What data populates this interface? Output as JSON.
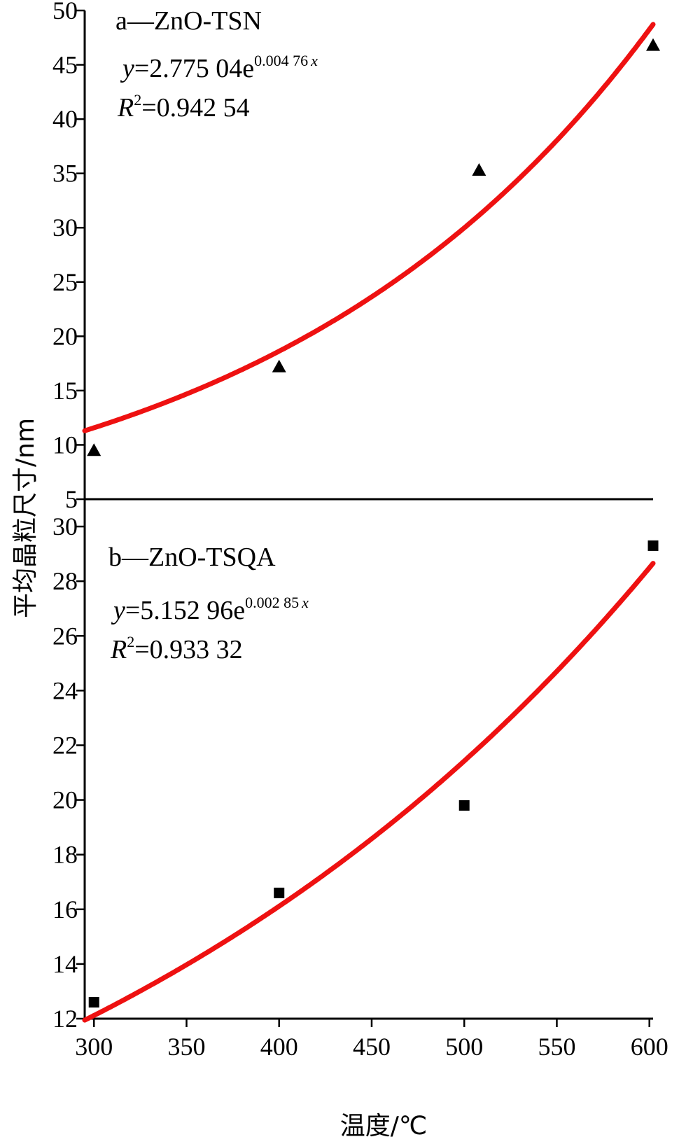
{
  "figure": {
    "ylabel": "平均晶粒尺寸/nm",
    "xlabel": "温度/℃"
  },
  "chart_data": [
    {
      "type": "scatter",
      "title": "a—ZnO-TSN",
      "x": [
        300,
        400,
        508,
        602
      ],
      "y": [
        9.5,
        17.2,
        35.3,
        46.8
      ],
      "marker": "triangle",
      "xlim": [
        295,
        602
      ],
      "ylim": [
        5,
        50
      ],
      "yticks": [
        5,
        10,
        15,
        20,
        25,
        30,
        35,
        40,
        45,
        50
      ],
      "fit": {
        "type": "exponential",
        "a": 2.77504,
        "b": 0.00476,
        "equation_y": "y",
        "equation_coef": "=2.775 04e",
        "equation_exp": "0.004 76",
        "equation_var": "x",
        "r2_label": "R",
        "r2_sup": "2",
        "r2_value": "=0.942 54"
      },
      "colors": {
        "fit": "#ee1111",
        "marker": "#000000"
      }
    },
    {
      "type": "scatter",
      "title": "b—ZnO-TSQA",
      "x": [
        300,
        400,
        500,
        602
      ],
      "y": [
        12.6,
        16.6,
        19.8,
        29.3
      ],
      "marker": "square",
      "xlim": [
        295,
        602
      ],
      "ylim": [
        12,
        31
      ],
      "yticks": [
        12,
        14,
        16,
        18,
        20,
        22,
        24,
        26,
        28,
        30
      ],
      "xticks": [
        300,
        350,
        400,
        450,
        500,
        550,
        600
      ],
      "fit": {
        "type": "exponential",
        "a": 5.15296,
        "b": 0.00285,
        "equation_y": "y",
        "equation_coef": "=5.152 96e",
        "equation_exp": "0.002 85",
        "equation_var": "x",
        "r2_label": "R",
        "r2_sup": "2",
        "r2_value": "=0.933 32"
      },
      "colors": {
        "fit": "#ee1111",
        "marker": "#000000"
      }
    }
  ]
}
